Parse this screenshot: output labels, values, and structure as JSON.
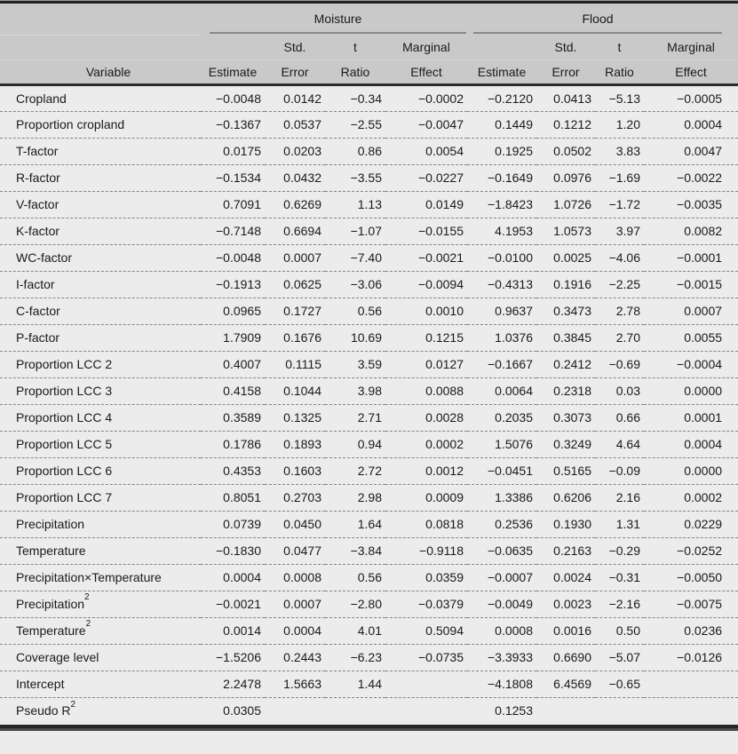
{
  "colors": {
    "header_bg": "#c9c9c9",
    "body_bg": "#ececec",
    "rule_dark": "#2b2b2b",
    "spanner_gray": "#8a8a8a",
    "dash_gray": "#858585",
    "text_color": "#1a1a1a"
  },
  "table": {
    "variable_header": "Variable",
    "groups": [
      {
        "label": "Moisture"
      },
      {
        "label": "Flood"
      }
    ],
    "subheaders_line1": [
      "",
      "Std.",
      "t",
      "Marginal"
    ],
    "subheaders_line2": [
      "Estimate",
      "Error",
      "Ratio",
      "Effect"
    ],
    "rows": [
      {
        "label": "Cropland",
        "values": [
          "−0.0048",
          "0.0142",
          "−0.34",
          "−0.0002",
          "−0.2120",
          "0.0413",
          "−5.13",
          "−0.0005"
        ]
      },
      {
        "label": "Proportion cropland",
        "values": [
          "−0.1367",
          "0.0537",
          "−2.55",
          "−0.0047",
          "0.1449",
          "0.1212",
          "1.20",
          "0.0004"
        ]
      },
      {
        "label": "T-factor",
        "values": [
          "0.0175",
          "0.0203",
          "0.86",
          "0.0054",
          "0.1925",
          "0.0502",
          "3.83",
          "0.0047"
        ]
      },
      {
        "label": "R-factor",
        "values": [
          "−0.1534",
          "0.0432",
          "−3.55",
          "−0.0227",
          "−0.1649",
          "0.0976",
          "−1.69",
          "−0.0022"
        ]
      },
      {
        "label": "V-factor",
        "values": [
          "0.7091",
          "0.6269",
          "1.13",
          "0.0149",
          "−1.8423",
          "1.0726",
          "−1.72",
          "−0.0035"
        ]
      },
      {
        "label": "K-factor",
        "values": [
          "−0.7148",
          "0.6694",
          "−1.07",
          "−0.0155",
          "4.1953",
          "1.0573",
          "3.97",
          "0.0082"
        ]
      },
      {
        "label": "WC-factor",
        "values": [
          "−0.0048",
          "0.0007",
          "−7.40",
          "−0.0021",
          "−0.0100",
          "0.0025",
          "−4.06",
          "−0.0001"
        ]
      },
      {
        "label": "I-factor",
        "values": [
          "−0.1913",
          "0.0625",
          "−3.06",
          "−0.0094",
          "−0.4313",
          "0.1916",
          "−2.25",
          "−0.0015"
        ]
      },
      {
        "label": "C-factor",
        "values": [
          "0.0965",
          "0.1727",
          "0.56",
          "0.0010",
          "0.9637",
          "0.3473",
          "2.78",
          "0.0007"
        ]
      },
      {
        "label": "P-factor",
        "values": [
          "1.7909",
          "0.1676",
          "10.69",
          "0.1215",
          "1.0376",
          "0.3845",
          "2.70",
          "0.0055"
        ]
      },
      {
        "label": "Proportion LCC 2",
        "values": [
          "0.4007",
          "0.1115",
          "3.59",
          "0.0127",
          "−0.1667",
          "0.2412",
          "−0.69",
          "−0.0004"
        ]
      },
      {
        "label": "Proportion LCC 3",
        "values": [
          "0.4158",
          "0.1044",
          "3.98",
          "0.0088",
          "0.0064",
          "0.2318",
          "0.03",
          "0.0000"
        ]
      },
      {
        "label": "Proportion LCC 4",
        "values": [
          "0.3589",
          "0.1325",
          "2.71",
          "0.0028",
          "0.2035",
          "0.3073",
          "0.66",
          "0.0001"
        ]
      },
      {
        "label": "Proportion LCC 5",
        "values": [
          "0.1786",
          "0.1893",
          "0.94",
          "0.0002",
          "1.5076",
          "0.3249",
          "4.64",
          "0.0004"
        ]
      },
      {
        "label": "Proportion LCC 6",
        "values": [
          "0.4353",
          "0.1603",
          "2.72",
          "0.0012",
          "−0.0451",
          "0.5165",
          "−0.09",
          "0.0000"
        ]
      },
      {
        "label": "Proportion LCC 7",
        "values": [
          "0.8051",
          "0.2703",
          "2.98",
          "0.0009",
          "1.3386",
          "0.6206",
          "2.16",
          "0.0002"
        ]
      },
      {
        "label": "Precipitation",
        "values": [
          "0.0739",
          "0.0450",
          "1.64",
          "0.0818",
          "0.2536",
          "0.1930",
          "1.31",
          "0.0229"
        ]
      },
      {
        "label": "Temperature",
        "values": [
          "−0.1830",
          "0.0477",
          "−3.84",
          "−0.9118",
          "−0.0635",
          "0.2163",
          "−0.29",
          "−0.0252"
        ]
      },
      {
        "label": "Precipitation×Temperature",
        "values": [
          "0.0004",
          "0.0008",
          "0.56",
          "0.0359",
          "−0.0007",
          "0.0024",
          "−0.31",
          "−0.0050"
        ]
      },
      {
        "label": "Precipitation",
        "sup": "2",
        "values": [
          "−0.0021",
          "0.0007",
          "−2.80",
          "−0.0379",
          "−0.0049",
          "0.0023",
          "−2.16",
          "−0.0075"
        ]
      },
      {
        "label": "Temperature",
        "sup": "2",
        "values": [
          "0.0014",
          "0.0004",
          "4.01",
          "0.5094",
          "0.0008",
          "0.0016",
          "0.50",
          "0.0236"
        ]
      },
      {
        "label": "Coverage level",
        "values": [
          "−1.5206",
          "0.2443",
          "−6.23",
          "−0.0735",
          "−3.3933",
          "0.6690",
          "−5.07",
          "−0.0126"
        ]
      },
      {
        "label": "Intercept",
        "values": [
          "2.2478",
          "1.5663",
          "1.44",
          "",
          "−4.1808",
          "6.4569",
          "−0.65",
          ""
        ]
      },
      {
        "label": "Pseudo R",
        "sup": "2",
        "values": [
          "0.0305",
          "",
          "",
          "",
          "0.1253",
          "",
          "",
          ""
        ]
      }
    ]
  }
}
